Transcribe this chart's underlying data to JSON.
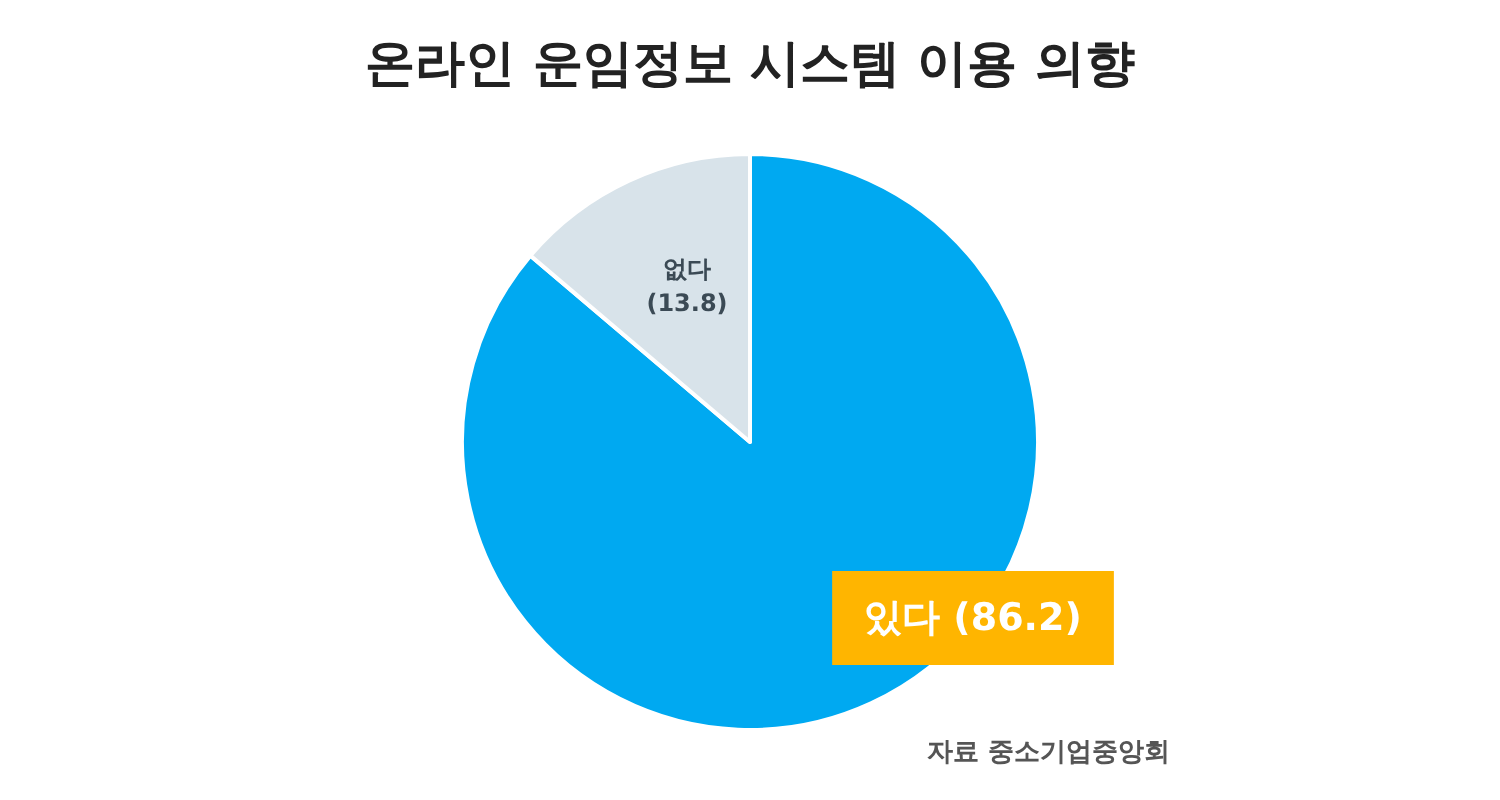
{
  "chart_data": {
    "type": "pie",
    "title": "온라인 운임정보 시스템 이용 의향",
    "categories": [
      "있다",
      "없다"
    ],
    "values": [
      86.2,
      13.8
    ],
    "colors": [
      "#00a9f1",
      "#d8e3ea"
    ],
    "value_labels": [
      "(86.2)",
      "(13.8)"
    ],
    "legend": false,
    "annotations": [
      "자료 중소기업중앙회"
    ]
  }
}
